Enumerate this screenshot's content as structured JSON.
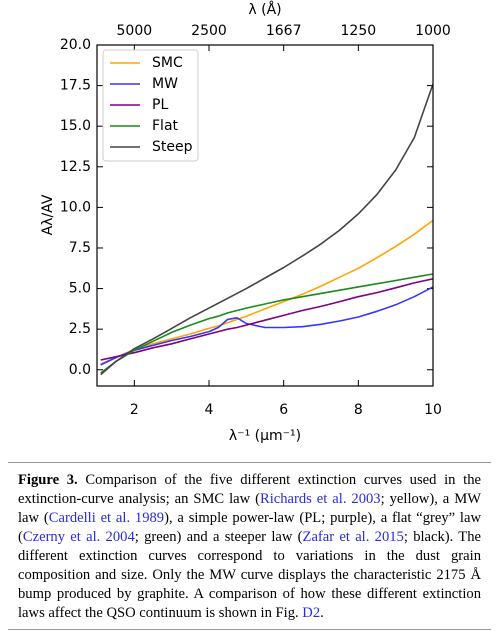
{
  "chart_data": {
    "type": "line",
    "xlabel": "λ⁻¹ (μm⁻¹)",
    "ylabel": "Aλ/AV",
    "x2label": "λ (Å)",
    "x": [
      1.1,
      1.5,
      2,
      2.5,
      3,
      3.5,
      4,
      4.25,
      4.5,
      4.75,
      5,
      5.5,
      6,
      6.5,
      7,
      7.5,
      8,
      8.5,
      9,
      9.5,
      10
    ],
    "series": [
      {
        "name": "SMC",
        "color": "#ffa500",
        "values": [
          0.35,
          0.75,
          1.25,
          1.6,
          1.9,
          2.2,
          2.55,
          2.7,
          2.9,
          3.1,
          3.3,
          3.75,
          4.2,
          4.65,
          5.15,
          5.7,
          6.25,
          6.9,
          7.6,
          8.35,
          9.2
        ]
      },
      {
        "name": "MW",
        "color": "#3535ff",
        "values": [
          0.3,
          0.75,
          1.2,
          1.5,
          1.8,
          2.05,
          2.35,
          2.6,
          3.1,
          3.2,
          2.85,
          2.6,
          2.6,
          2.65,
          2.8,
          3.0,
          3.25,
          3.6,
          4.0,
          4.5,
          5.1
        ]
      },
      {
        "name": "PL",
        "color": "#800080",
        "values": [
          0.6,
          0.8,
          1.05,
          1.35,
          1.6,
          1.9,
          2.2,
          2.35,
          2.5,
          2.6,
          2.75,
          3.05,
          3.35,
          3.65,
          3.9,
          4.2,
          4.5,
          4.75,
          5.05,
          5.35,
          5.6
        ]
      },
      {
        "name": "Flat",
        "color": "#1a8a1a",
        "values": [
          -0.2,
          0.5,
          1.2,
          1.75,
          2.3,
          2.75,
          3.15,
          3.3,
          3.5,
          3.65,
          3.8,
          4.05,
          4.3,
          4.5,
          4.7,
          4.9,
          5.1,
          5.3,
          5.5,
          5.7,
          5.9
        ]
      },
      {
        "name": "Steep",
        "color": "#444444",
        "values": [
          -0.3,
          0.5,
          1.3,
          1.9,
          2.55,
          3.2,
          3.8,
          4.1,
          4.4,
          4.7,
          5.0,
          5.65,
          6.3,
          7.0,
          7.75,
          8.6,
          9.6,
          10.8,
          12.3,
          14.3,
          17.6
        ]
      }
    ],
    "xlim": [
      1,
      10
    ],
    "ylim": [
      -1,
      20
    ],
    "xticks": [
      2,
      4,
      6,
      8,
      10
    ],
    "x2ticks": [
      {
        "value": 2,
        "label": "5000"
      },
      {
        "value": 4,
        "label": "2500"
      },
      {
        "value": 6,
        "label": "1667"
      },
      {
        "value": 8,
        "label": "1250"
      },
      {
        "value": 10,
        "label": "1000"
      }
    ],
    "yticks": [
      {
        "value": 0,
        "label": "0.0"
      },
      {
        "value": 2.5,
        "label": "2.5"
      },
      {
        "value": 5,
        "label": "5.0"
      },
      {
        "value": 7.5,
        "label": "7.5"
      },
      {
        "value": 10,
        "label": "10.0"
      },
      {
        "value": 12.5,
        "label": "12.5"
      },
      {
        "value": 15,
        "label": "15.0"
      },
      {
        "value": 17.5,
        "label": "17.5"
      },
      {
        "value": 20,
        "label": "20.0"
      }
    ],
    "legend": "upper left",
    "grid": false
  },
  "caption": {
    "label": "Figure 3.",
    "segments": [
      {
        "text": " Comparison of the five different extinction curves used in the extinction-curve analysis; an SMC law ("
      },
      {
        "text": "Richards et al. 2003",
        "cite": true
      },
      {
        "text": "; yellow), a MW law ("
      },
      {
        "text": "Cardelli et al. 1989",
        "cite": true
      },
      {
        "text": "), a simple power-law (PL; purple), a flat “grey” law ("
      },
      {
        "text": "Czerny et al. 2004",
        "cite": true
      },
      {
        "text": "; green) and a steeper law ("
      },
      {
        "text": "Zafar et al. 2015",
        "cite": true
      },
      {
        "text": "; black). The different extinction curves correspond to variations in the dust grain composition and size. Only the MW curve displays the characteristic 2175 Å bump produced by graphite. A comparison of how these different extinction laws affect the QSO continuum is shown in Fig. "
      },
      {
        "text": "D2",
        "cite": true
      },
      {
        "text": "."
      }
    ]
  }
}
